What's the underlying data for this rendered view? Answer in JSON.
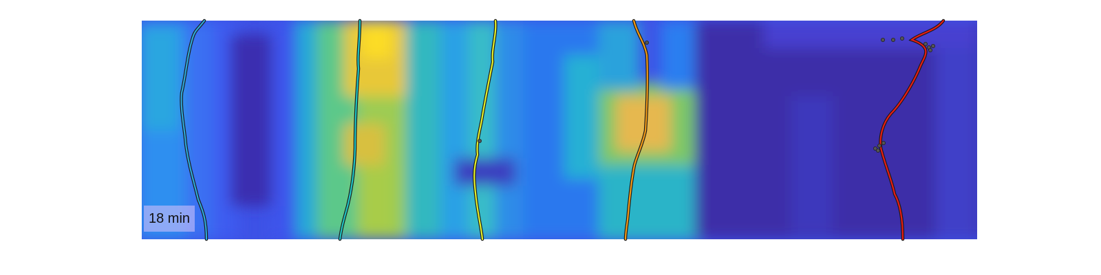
{
  "time_label": "18 min",
  "colormap": "parula",
  "colors": {
    "background": "#ffffff",
    "heatmap_low": "#3e2aa8",
    "heatmap_mid": "#16b6c8",
    "heatmap_high": "#f6d82a",
    "marker": "#555555"
  },
  "tracks": [
    {
      "color": "#2fa7d9"
    },
    {
      "color": "#1fc4c4"
    },
    {
      "color": "#e4f02a"
    },
    {
      "color": "#f29a17"
    },
    {
      "color": "#e81c14"
    }
  ]
}
